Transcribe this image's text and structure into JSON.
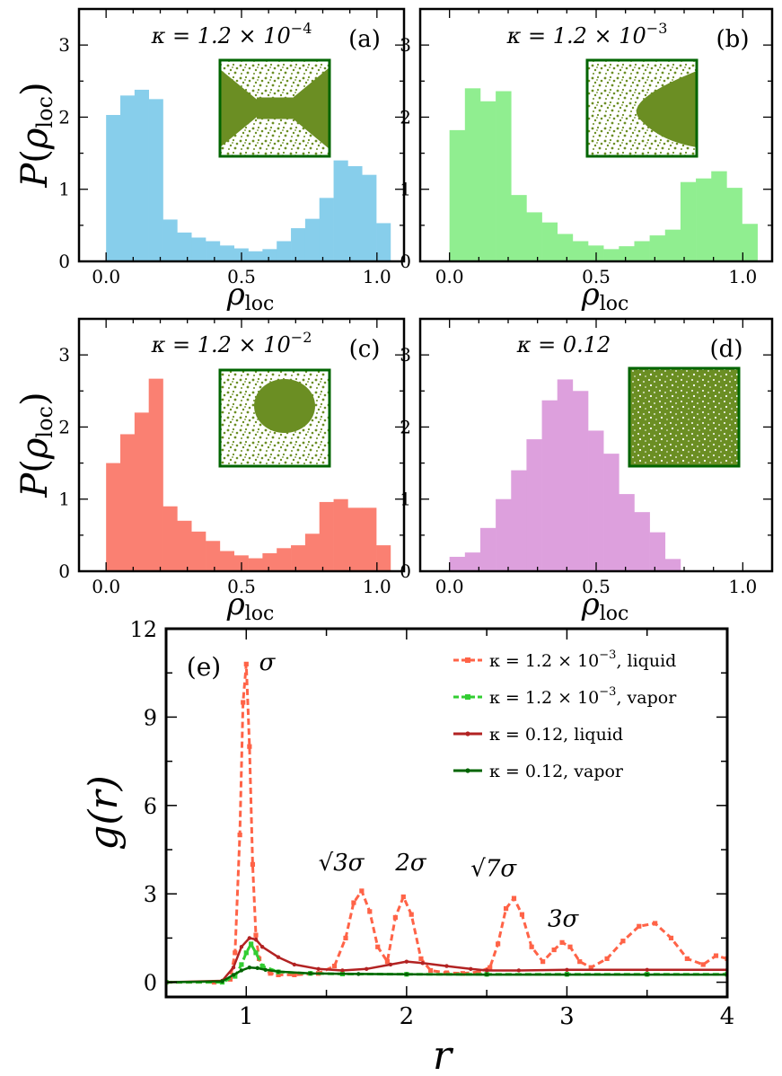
{
  "figure": {
    "common": {
      "ylabel_main": "P",
      "ylabel_paren_open": "(",
      "ylabel_rho": "ρ",
      "ylabel_sub": "loc",
      "ylabel_paren_close": ")",
      "xlabel_rho": "ρ",
      "xlabel_sub": "loc",
      "hist_xticks": [
        "0.0",
        "0.5",
        "1.0"
      ],
      "hist_yticks": [
        "0",
        "1",
        "2",
        "3"
      ]
    }
  },
  "colors": {
    "a": "#87ceeb",
    "b": "#90ee90",
    "c": "#fa8072",
    "d": "#dda0dd",
    "snapshot_fill": "#6b8e23",
    "snapshot_border": "#006400",
    "liquid_a": "#ff6347",
    "vapor_a": "#32cd32",
    "liquid_b": "#b22222",
    "vapor_b": "#006400"
  },
  "chart_data": [
    {
      "id": "a",
      "type": "bar",
      "panel_label": "(a)",
      "kappa_base": "κ = 1.2 × 10",
      "kappa_exp": "−4",
      "xlabel": "ρ_loc",
      "ylabel": "P(ρ_loc)",
      "xlim": [
        -0.1,
        1.1
      ],
      "ylim": [
        0,
        3.5
      ],
      "bin_width": 0.0525,
      "x": [
        0.0,
        0.0525,
        0.105,
        0.1575,
        0.21,
        0.2625,
        0.315,
        0.3675,
        0.42,
        0.4725,
        0.525,
        0.5775,
        0.63,
        0.6825,
        0.735,
        0.7875,
        0.84,
        0.8925,
        0.945,
        0.9975
      ],
      "values": [
        2.03,
        2.3,
        2.38,
        2.25,
        0.58,
        0.4,
        0.33,
        0.28,
        0.22,
        0.18,
        0.14,
        0.17,
        0.28,
        0.46,
        0.59,
        0.88,
        1.4,
        1.32,
        1.2,
        0.53
      ]
    },
    {
      "id": "b",
      "type": "bar",
      "panel_label": "(b)",
      "kappa_base": "κ = 1.2 × 10",
      "kappa_exp": "−3",
      "xlabel": "ρ_loc",
      "ylabel": "P(ρ_loc)",
      "xlim": [
        -0.1,
        1.1
      ],
      "ylim": [
        0,
        3.5
      ],
      "bin_width": 0.0525,
      "x": [
        0.0,
        0.0525,
        0.105,
        0.1575,
        0.21,
        0.2625,
        0.315,
        0.3675,
        0.42,
        0.4725,
        0.525,
        0.5775,
        0.63,
        0.6825,
        0.735,
        0.7875,
        0.84,
        0.8925,
        0.945,
        0.9975
      ],
      "values": [
        1.82,
        2.4,
        2.22,
        2.36,
        0.92,
        0.68,
        0.54,
        0.38,
        0.28,
        0.22,
        0.17,
        0.21,
        0.28,
        0.36,
        0.44,
        1.1,
        1.15,
        1.25,
        1.02,
        0.52
      ]
    },
    {
      "id": "c",
      "type": "bar",
      "panel_label": "(c)",
      "kappa_base": "κ = 1.2 × 10",
      "kappa_exp": "−2",
      "xlabel": "ρ_loc",
      "ylabel": "P(ρ_loc)",
      "xlim": [
        -0.1,
        1.1
      ],
      "ylim": [
        0,
        3.5
      ],
      "bin_width": 0.0525,
      "x": [
        0.0,
        0.0525,
        0.105,
        0.1575,
        0.21,
        0.2625,
        0.315,
        0.3675,
        0.42,
        0.4725,
        0.525,
        0.5775,
        0.63,
        0.6825,
        0.735,
        0.7875,
        0.84,
        0.8925,
        0.945,
        0.9975
      ],
      "values": [
        1.5,
        1.9,
        2.2,
        2.67,
        0.9,
        0.7,
        0.55,
        0.42,
        0.28,
        0.22,
        0.18,
        0.25,
        0.32,
        0.36,
        0.52,
        0.96,
        1.0,
        0.88,
        0.88,
        0.36
      ]
    },
    {
      "id": "d",
      "type": "bar",
      "panel_label": "(d)",
      "kappa_base": "κ = 0.12",
      "kappa_exp": "",
      "xlabel": "ρ_loc",
      "ylabel": "P(ρ_loc)",
      "xlim": [
        -0.1,
        1.1
      ],
      "ylim": [
        0,
        3.5
      ],
      "bin_width": 0.0525,
      "x": [
        0.0,
        0.0525,
        0.105,
        0.1575,
        0.21,
        0.2625,
        0.315,
        0.3675,
        0.42,
        0.4725,
        0.525,
        0.5775,
        0.63,
        0.6825,
        0.735,
        0.7875
      ],
      "values": [
        0.2,
        0.26,
        0.6,
        1.0,
        1.4,
        1.83,
        2.37,
        2.66,
        2.5,
        1.95,
        1.63,
        1.07,
        0.82,
        0.54,
        0.17,
        0.0
      ]
    },
    {
      "id": "e",
      "type": "line",
      "panel_label": "(e)",
      "xlabel": "r",
      "ylabel": "g(r)",
      "xlim": [
        0.5,
        4.0
      ],
      "ylim": [
        -0.5,
        12
      ],
      "xticks": [
        "1",
        "2",
        "3",
        "4"
      ],
      "yticks": [
        "0",
        "3",
        "6",
        "9",
        "12"
      ],
      "peak_labels": [
        {
          "text": "σ",
          "x": 1.08,
          "y": 10.6
        },
        {
          "text": "√3σ",
          "x": 1.45,
          "y": 3.8
        },
        {
          "text": "2σ",
          "x": 1.93,
          "y": 3.8
        },
        {
          "text": "√7σ",
          "x": 2.4,
          "y": 3.6
        },
        {
          "text": "3σ",
          "x": 2.88,
          "y": 1.9
        }
      ],
      "legend": [
        {
          "prefix": "κ = 1.2 × 10",
          "exp": "−3",
          "suffix": ", liquid"
        },
        {
          "prefix": "κ = 1.2 × 10",
          "exp": "−3",
          "suffix": ", vapor"
        },
        {
          "prefix": "κ = 0.12, liquid",
          "exp": "",
          "suffix": ""
        },
        {
          "prefix": "κ = 0.12, vapor",
          "exp": "",
          "suffix": ""
        }
      ],
      "series": [
        {
          "name": "κ = 1.2 × 10^-3, liquid",
          "style": "dashed-square",
          "x": [
            0.5,
            0.8,
            0.9,
            0.93,
            0.96,
            0.98,
            1.0,
            1.02,
            1.04,
            1.06,
            1.08,
            1.1,
            1.15,
            1.2,
            1.3,
            1.45,
            1.55,
            1.62,
            1.67,
            1.72,
            1.77,
            1.82,
            1.88,
            1.93,
            1.98,
            2.03,
            2.09,
            2.15,
            2.25,
            2.35,
            2.45,
            2.52,
            2.57,
            2.62,
            2.67,
            2.72,
            2.78,
            2.85,
            2.92,
            2.97,
            3.02,
            3.08,
            3.15,
            3.25,
            3.35,
            3.45,
            3.55,
            3.65,
            3.75,
            3.85,
            3.93,
            4.0
          ],
          "values": [
            0.0,
            0.0,
            0.1,
            1.0,
            5.0,
            9.5,
            10.8,
            8.0,
            4.0,
            1.6,
            0.8,
            0.5,
            0.3,
            0.25,
            0.25,
            0.3,
            0.55,
            1.5,
            2.7,
            3.1,
            2.4,
            1.2,
            0.7,
            2.2,
            2.9,
            2.3,
            0.8,
            0.4,
            0.32,
            0.3,
            0.35,
            0.5,
            1.3,
            2.5,
            2.85,
            2.3,
            1.2,
            0.7,
            1.1,
            1.35,
            1.2,
            0.7,
            0.5,
            0.8,
            1.4,
            1.9,
            2.0,
            1.5,
            0.8,
            0.6,
            0.9,
            0.8
          ]
        },
        {
          "name": "κ = 1.2 × 10^-3, vapor",
          "style": "dashed-square",
          "x": [
            0.5,
            0.85,
            0.93,
            0.97,
            1.0,
            1.03,
            1.06,
            1.1,
            1.2,
            1.4,
            1.6,
            2.0,
            2.5,
            3.0,
            3.5,
            4.0
          ],
          "values": [
            0.0,
            0.0,
            0.2,
            0.6,
            1.0,
            1.3,
            1.0,
            0.55,
            0.35,
            0.3,
            0.28,
            0.27,
            0.27,
            0.27,
            0.27,
            0.27
          ]
        },
        {
          "name": "κ = 0.12, liquid",
          "style": "solid-marker",
          "x": [
            0.5,
            0.85,
            0.92,
            0.97,
            1.02,
            1.06,
            1.1,
            1.2,
            1.3,
            1.45,
            1.6,
            1.75,
            1.9,
            2.0,
            2.1,
            2.25,
            2.4,
            2.5,
            2.7,
            3.0,
            3.5,
            4.0
          ],
          "values": [
            0.0,
            0.05,
            0.5,
            1.2,
            1.5,
            1.45,
            1.2,
            0.85,
            0.6,
            0.45,
            0.4,
            0.45,
            0.6,
            0.7,
            0.65,
            0.55,
            0.45,
            0.4,
            0.4,
            0.42,
            0.42,
            0.42
          ]
        },
        {
          "name": "κ = 0.12, vapor",
          "style": "solid-marker",
          "x": [
            0.5,
            0.85,
            0.92,
            0.97,
            1.02,
            1.07,
            1.12,
            1.2,
            1.4,
            1.7,
            2.0,
            2.5,
            3.0,
            3.5,
            4.0
          ],
          "values": [
            0.0,
            0.03,
            0.25,
            0.4,
            0.5,
            0.48,
            0.42,
            0.36,
            0.3,
            0.28,
            0.27,
            0.26,
            0.26,
            0.26,
            0.26
          ]
        }
      ]
    }
  ]
}
